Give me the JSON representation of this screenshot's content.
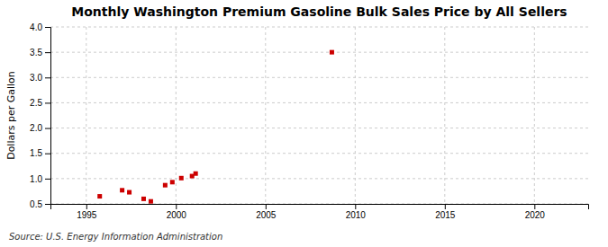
{
  "chart_data": {
    "type": "scatter",
    "title": "Monthly Washington Premium Gasoline Bulk Sales Price by All Sellers",
    "ylabel": "Dollars per Gallon",
    "annotations": [
      "Source: U.S. Energy Information Administration"
    ],
    "x": [
      1995.75,
      1997.0,
      1997.4,
      1998.2,
      1998.6,
      1999.4,
      1999.8,
      2000.3,
      2000.9,
      2001.1,
      2008.7
    ],
    "values": [
      0.65,
      0.77,
      0.73,
      0.6,
      0.55,
      0.87,
      0.93,
      1.01,
      1.05,
      1.1,
      3.5
    ],
    "color": "#cc0000",
    "marker": "square",
    "xlim": [
      1993,
      2023
    ],
    "ylim": [
      0.5,
      4.0
    ],
    "xticks": [
      1995,
      2000,
      2005,
      2010,
      2015,
      2020
    ],
    "yticks": [
      0.5,
      {
        "value": 1.0,
        "label": "1.0"
      },
      1.5,
      {
        "value": 2.0,
        "label": "2.0"
      },
      2.5,
      {
        "value": 3.0,
        "label": "3.0"
      },
      3.5,
      {
        "value": 4.0,
        "label": "4.0"
      }
    ],
    "grid": true
  }
}
